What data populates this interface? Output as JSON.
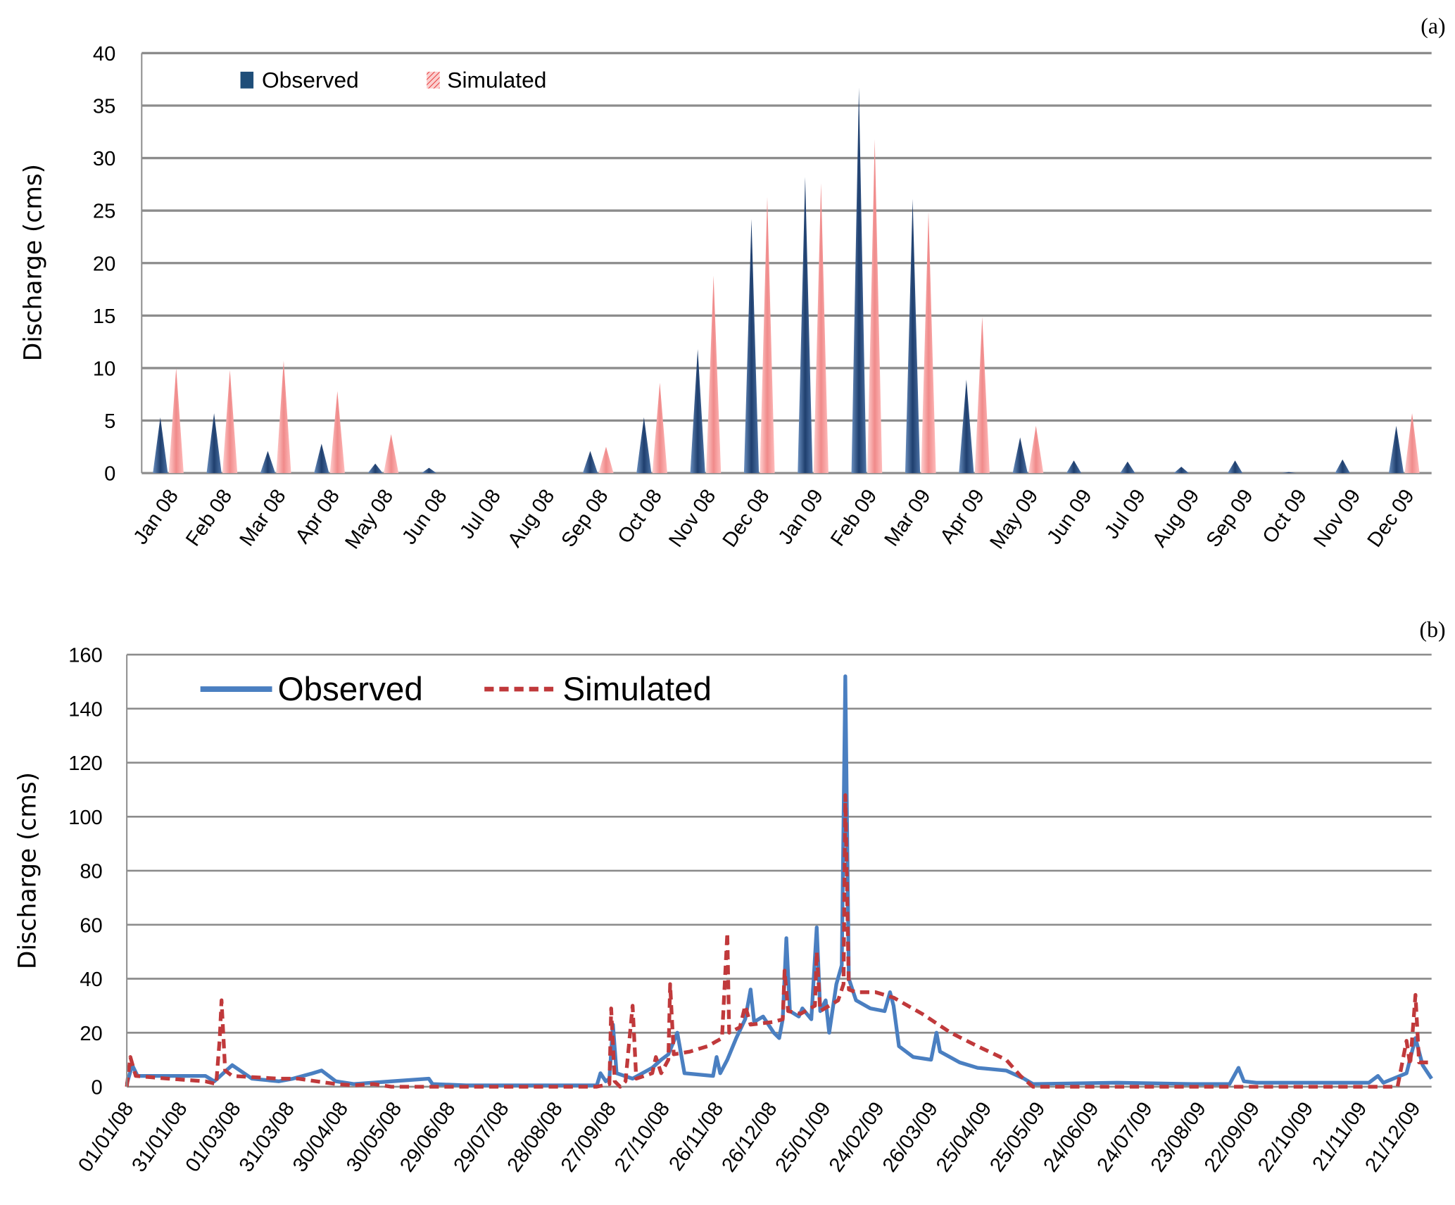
{
  "colors": {
    "observed": "#1f4e79",
    "simulated": "#f4a0a0",
    "observed_line": "#4a7fc1",
    "simulated_line": "#c0393b",
    "grid": "#8c8c8c"
  },
  "chart_data": [
    {
      "type": "bar",
      "panel_label": "(a)",
      "title": "",
      "xlabel": "",
      "ylabel": "Discharge (cms)",
      "ylim": [
        0,
        40
      ],
      "yticks": [
        0,
        5,
        10,
        15,
        20,
        25,
        30,
        35,
        40
      ],
      "grid": true,
      "legend_placement": "top-left",
      "categories": [
        "Jan 08",
        "Feb 08",
        "Mar 08",
        "Apr 08",
        "May 08",
        "Jun 08",
        "Jul 08",
        "Aug 08",
        "Sep 08",
        "Oct 08",
        "Nov 08",
        "Dec 08",
        "Jan 09",
        "Feb 09",
        "Mar 09",
        "Apr 09",
        "May 09",
        "Jun 09",
        "Jul 09",
        "Aug 09",
        "Sep 09",
        "Oct 09",
        "Nov 09",
        "Dec 09"
      ],
      "series": [
        {
          "name": "Observed",
          "values": [
            5.3,
            5.7,
            2.1,
            2.8,
            0.9,
            0.5,
            0,
            0,
            2.1,
            5.3,
            11.8,
            24.2,
            28.2,
            36.7,
            26.1,
            8.9,
            3.4,
            1.2,
            1.1,
            0.6,
            1.2,
            0.1,
            1.3,
            4.5
          ]
        },
        {
          "name": "Simulated",
          "values": [
            10,
            9.8,
            10.7,
            7.8,
            3.7,
            0,
            0,
            0,
            2.5,
            8.6,
            18.8,
            26.3,
            27.6,
            31.8,
            24.9,
            14.9,
            4.5,
            0,
            0,
            0,
            0,
            0,
            0,
            5.7
          ]
        }
      ]
    },
    {
      "type": "line",
      "panel_label": "(b)",
      "title": "",
      "xlabel": "",
      "ylabel": "Discharge (cms)",
      "ylim": [
        0,
        160
      ],
      "xlim_days": [
        0,
        730
      ],
      "yticks": [
        0,
        20,
        40,
        60,
        80,
        100,
        120,
        140,
        160
      ],
      "grid": true,
      "legend_placement": "top-left",
      "xtick_labels": [
        "01/01/08",
        "31/01/08",
        "01/03/08",
        "31/03/08",
        "30/04/08",
        "30/05/08",
        "29/06/08",
        "29/07/08",
        "28/08/08",
        "27/09/08",
        "27/10/08",
        "26/11/08",
        "26/12/08",
        "25/01/09",
        "24/02/09",
        "26/03/09",
        "25/04/09",
        "25/05/09",
        "24/06/09",
        "24/07/09",
        "23/08/09",
        "22/09/09",
        "22/10/09",
        "21/11/09",
        "21/12/09"
      ],
      "xtick_days": [
        0,
        30,
        60,
        90,
        120,
        150,
        180,
        210,
        240,
        270,
        300,
        330,
        360,
        390,
        420,
        450,
        480,
        510,
        540,
        570,
        600,
        630,
        660,
        690,
        720
      ],
      "series": [
        {
          "name": "Observed",
          "points": [
            [
              0,
              1
            ],
            [
              3,
              8
            ],
            [
              6,
              4
            ],
            [
              44,
              4
            ],
            [
              49,
              2
            ],
            [
              59,
              8
            ],
            [
              70,
              3
            ],
            [
              85,
              2
            ],
            [
              93,
              3
            ],
            [
              104,
              5
            ],
            [
              109,
              6
            ],
            [
              117,
              2
            ],
            [
              127,
              1
            ],
            [
              148,
              2
            ],
            [
              169,
              3
            ],
            [
              171,
              1
            ],
            [
              190,
              0.5
            ],
            [
              263,
              0.5
            ],
            [
              265,
              5
            ],
            [
              268,
              2
            ],
            [
              270,
              3
            ],
            [
              272,
              23
            ],
            [
              274,
              5
            ],
            [
              283,
              3
            ],
            [
              294,
              7
            ],
            [
              299,
              10
            ],
            [
              303,
              12
            ],
            [
              308,
              20
            ],
            [
              312,
              5
            ],
            [
              328,
              4
            ],
            [
              330,
              11
            ],
            [
              332,
              5
            ],
            [
              336,
              10
            ],
            [
              341,
              18
            ],
            [
              346,
              25
            ],
            [
              349,
              36
            ],
            [
              351,
              24
            ],
            [
              356,
              26
            ],
            [
              362,
              20
            ],
            [
              365,
              18
            ],
            [
              367,
              25
            ],
            [
              369,
              55
            ],
            [
              371,
              28
            ],
            [
              376,
              26
            ],
            [
              378,
              29
            ],
            [
              383,
              25
            ],
            [
              386,
              59
            ],
            [
              388,
              28
            ],
            [
              391,
              32
            ],
            [
              393,
              20
            ],
            [
              397,
              38
            ],
            [
              400,
              45
            ],
            [
              402,
              152
            ],
            [
              404,
              40
            ],
            [
              408,
              32
            ],
            [
              416,
              29
            ],
            [
              424,
              28
            ],
            [
              427,
              35
            ],
            [
              429,
              30
            ],
            [
              432,
              15
            ],
            [
              440,
              11
            ],
            [
              450,
              10
            ],
            [
              453,
              20
            ],
            [
              455,
              13
            ],
            [
              466,
              9
            ],
            [
              476,
              7
            ],
            [
              492,
              6
            ],
            [
              502,
              3
            ],
            [
              507,
              1
            ],
            [
              554,
              1.5
            ],
            [
              596,
              1
            ],
            [
              617,
              1
            ],
            [
              622,
              7
            ],
            [
              625,
              2
            ],
            [
              632,
              1.5
            ],
            [
              695,
              1.5
            ],
            [
              700,
              4
            ],
            [
              703,
              1.5
            ],
            [
              716,
              5
            ],
            [
              721,
              18
            ],
            [
              725,
              8
            ],
            [
              730,
              3
            ]
          ]
        },
        {
          "name": "Simulated",
          "points": [
            [
              0,
              0
            ],
            [
              2,
              11
            ],
            [
              5,
              4
            ],
            [
              23,
              3
            ],
            [
              44,
              2
            ],
            [
              50,
              1
            ],
            [
              52,
              18
            ],
            [
              53,
              32
            ],
            [
              55,
              6
            ],
            [
              59,
              4
            ],
            [
              85,
              3
            ],
            [
              96,
              3
            ],
            [
              106,
              2
            ],
            [
              117,
              1
            ],
            [
              127,
              0.5
            ],
            [
              138,
              1
            ],
            [
              148,
              0
            ],
            [
              263,
              0
            ],
            [
              270,
              1
            ],
            [
              271,
              29
            ],
            [
              273,
              2
            ],
            [
              276,
              0
            ],
            [
              279,
              2
            ],
            [
              283,
              30
            ],
            [
              285,
              3
            ],
            [
              294,
              5
            ],
            [
              296,
              11
            ],
            [
              299,
              5
            ],
            [
              303,
              10
            ],
            [
              304,
              38
            ],
            [
              306,
              12
            ],
            [
              315,
              13
            ],
            [
              325,
              15
            ],
            [
              333,
              18
            ],
            [
              336,
              57
            ],
            [
              337,
              20
            ],
            [
              343,
              22
            ],
            [
              346,
              30
            ],
            [
              349,
              23
            ],
            [
              362,
              24
            ],
            [
              367,
              25
            ],
            [
              368,
              43
            ],
            [
              370,
              28
            ],
            [
              377,
              27
            ],
            [
              385,
              30
            ],
            [
              386,
              50
            ],
            [
              388,
              28
            ],
            [
              398,
              32
            ],
            [
              401,
              38
            ],
            [
              402,
              108
            ],
            [
              404,
              36
            ],
            [
              408,
              35
            ],
            [
              419,
              35
            ],
            [
              429,
              33
            ],
            [
              445,
              27
            ],
            [
              461,
              20
            ],
            [
              476,
              15
            ],
            [
              492,
              10
            ],
            [
              500,
              4
            ],
            [
              507,
              0
            ],
            [
              711,
              0
            ],
            [
              716,
              17
            ],
            [
              718,
              8
            ],
            [
              721,
              34
            ],
            [
              723,
              9
            ],
            [
              729,
              9
            ]
          ]
        }
      ]
    }
  ]
}
